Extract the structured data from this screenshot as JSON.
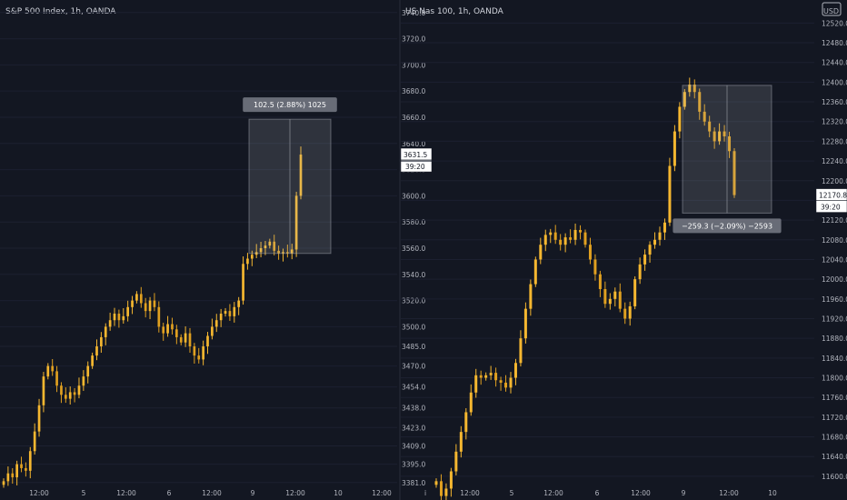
{
  "chart_data": [
    {
      "type": "candlestick",
      "title": "S&P 500 Index, 1h, OANDA",
      "currency": "",
      "x_ticks": [
        "12:00",
        "5",
        "12:00",
        "6",
        "12:00",
        "9",
        "12:00",
        "10",
        "12:00"
      ],
      "y_ticks": [
        3740.0,
        3720.0,
        3700.0,
        3680.0,
        3660.0,
        3640.0,
        3620.0,
        3600.0,
        3580.0,
        3560.0,
        3540.0,
        3520.0,
        3500.0,
        3485.0,
        3470.0,
        3454.0,
        3438.0,
        3423.0,
        3409.0,
        3395.0,
        3381.0
      ],
      "ylim": [
        3376,
        3744
      ],
      "last_price": "3631.5",
      "countdown": "39:20",
      "measure": {
        "label": "102.5 (2.88%) 1025",
        "from": 3556,
        "to": 3658.5
      },
      "closes": [
        3382,
        3388,
        3385,
        3395,
        3392,
        3390,
        3405,
        3420,
        3440,
        3462,
        3470,
        3466,
        3455,
        3448,
        3445,
        3450,
        3448,
        3455,
        3462,
        3470,
        3478,
        3485,
        3492,
        3500,
        3505,
        3510,
        3505,
        3508,
        3515,
        3520,
        3525,
        3518,
        3512,
        3520,
        3515,
        3500,
        3495,
        3502,
        3498,
        3492,
        3488,
        3495,
        3485,
        3478,
        3475,
        3485,
        3493,
        3500,
        3505,
        3510,
        3512,
        3508,
        3515,
        3520,
        3548,
        3552,
        3555,
        3557,
        3560,
        3562,
        3565,
        3558,
        3556,
        3557,
        3556,
        3559,
        3600,
        3631.5
      ]
    },
    {
      "type": "candlestick",
      "title": "US Nas 100, 1h, OANDA",
      "currency": "USD",
      "x_ticks": [
        "i",
        "12:00",
        "5",
        "12:00",
        "6",
        "12:00",
        "9",
        "12:00",
        "10"
      ],
      "y_ticks": [
        12520.0,
        12480.0,
        12440.0,
        12400.0,
        12360.0,
        12320.0,
        12280.0,
        12240.0,
        12200.0,
        12160.0,
        12120.0,
        12080.0,
        12040.0,
        12000.0,
        11960.0,
        11920.0,
        11880.0,
        11840.0,
        11800.0,
        11760.0,
        11720.0,
        11680.0,
        11640.0,
        11600.0
      ],
      "ylim": [
        11574,
        12552
      ],
      "last_price": "12170.8",
      "countdown": "39:20",
      "measure": {
        "label": "−259.3 (−2.09%) −2593",
        "from": 12393.5,
        "to": 12134.2
      },
      "closes": [
        11590,
        11560,
        11575,
        11610,
        11650,
        11690,
        11730,
        11770,
        11805,
        11800,
        11805,
        11810,
        11795,
        11790,
        11780,
        11800,
        11830,
        11880,
        11940,
        11990,
        12040,
        12070,
        12090,
        12095,
        12080,
        12070,
        12085,
        12080,
        12100,
        12095,
        12070,
        12040,
        12010,
        11980,
        11950,
        11960,
        11975,
        11940,
        11920,
        11945,
        12000,
        12030,
        12050,
        12070,
        12080,
        12095,
        12115,
        12230,
        12300,
        12350,
        12380,
        12395,
        12380,
        12340,
        12320,
        12300,
        12280,
        12300,
        12290,
        12260,
        12170.8
      ]
    }
  ]
}
